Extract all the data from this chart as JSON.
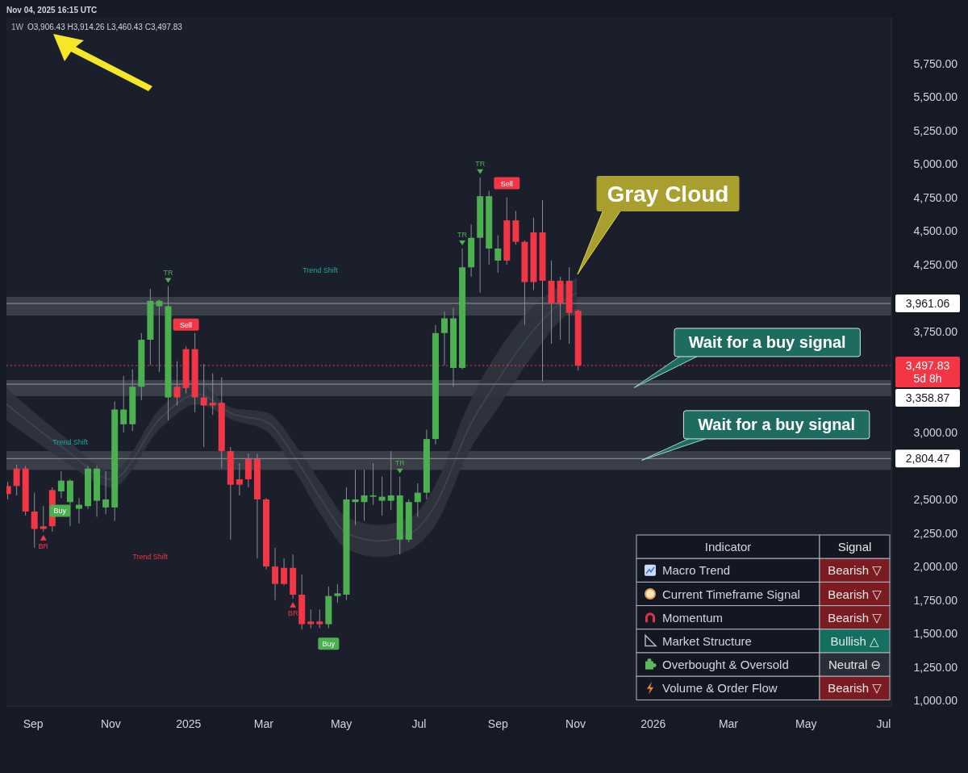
{
  "chart_data": [
    {
      "type": "candlestick",
      "title": "1W",
      "x": [
        "2024-08-12",
        "2024-08-19",
        "2024-08-26",
        "2024-09-02",
        "2024-09-09",
        "2024-09-16",
        "2024-09-23",
        "2024-09-30",
        "2024-10-07",
        "2024-10-14",
        "2024-10-21",
        "2024-10-28",
        "2024-11-04",
        "2024-11-11",
        "2024-11-18",
        "2024-11-25",
        "2024-12-02",
        "2024-12-09",
        "2024-12-16",
        "2024-12-23",
        "2024-12-30",
        "2025-01-06",
        "2025-01-13",
        "2025-01-20",
        "2025-01-27",
        "2025-02-03",
        "2025-02-10",
        "2025-02-17",
        "2025-02-24",
        "2025-03-03",
        "2025-03-10",
        "2025-03-17",
        "2025-03-24",
        "2025-03-31",
        "2025-04-07",
        "2025-04-14",
        "2025-04-21",
        "2025-04-28",
        "2025-05-05",
        "2025-05-12",
        "2025-05-19",
        "2025-05-26",
        "2025-06-02",
        "2025-06-09",
        "2025-06-16",
        "2025-06-23",
        "2025-06-30",
        "2025-07-07",
        "2025-07-14",
        "2025-07-21",
        "2025-07-28",
        "2025-08-04",
        "2025-08-11",
        "2025-08-18",
        "2025-08-25",
        "2025-09-01",
        "2025-09-08",
        "2025-09-15",
        "2025-09-22",
        "2025-09-29",
        "2025-10-06",
        "2025-10-13",
        "2025-10-20",
        "2025-10-27",
        "2025-11-03"
      ],
      "ohlc": [
        [
          2600,
          2630,
          2500,
          2540
        ],
        [
          2730,
          2760,
          2530,
          2600
        ],
        [
          2730,
          2750,
          2380,
          2410
        ],
        [
          2410,
          2550,
          2140,
          2280
        ],
        [
          2300,
          2450,
          2260,
          2280
        ],
        [
          2570,
          2590,
          2260,
          2300
        ],
        [
          2560,
          2710,
          2510,
          2640
        ],
        [
          2480,
          2650,
          2300,
          2640
        ],
        [
          2430,
          2510,
          2320,
          2460
        ],
        [
          2450,
          2750,
          2430,
          2730
        ],
        [
          2490,
          2750,
          2370,
          2730
        ],
        [
          2440,
          2710,
          2390,
          2500
        ],
        [
          2440,
          3230,
          2340,
          3170
        ],
        [
          3060,
          3420,
          3000,
          3170
        ],
        [
          3060,
          3470,
          3010,
          3340
        ],
        [
          3340,
          3740,
          3240,
          3690
        ],
        [
          3690,
          4070,
          3500,
          3980
        ],
        [
          3940,
          3990,
          3450,
          3980
        ],
        [
          3260,
          4090,
          3090,
          3940
        ],
        [
          3340,
          3530,
          3200,
          3260
        ],
        [
          3620,
          3640,
          3290,
          3330
        ],
        [
          3620,
          3740,
          3150,
          3260
        ],
        [
          3260,
          3510,
          2890,
          3200
        ],
        [
          3220,
          3440,
          3130,
          3200
        ],
        [
          3220,
          3410,
          2730,
          2860
        ],
        [
          2860,
          2890,
          2200,
          2610
        ],
        [
          2650,
          2770,
          2530,
          2610
        ],
        [
          2800,
          2840,
          2590,
          2650
        ],
        [
          2800,
          2840,
          2060,
          2500
        ],
        [
          2500,
          2510,
          1980,
          2000
        ],
        [
          2000,
          2140,
          1750,
          1870
        ],
        [
          1990,
          2060,
          1860,
          1870
        ],
        [
          1990,
          2090,
          1760,
          1790
        ],
        [
          1790,
          1940,
          1530,
          1570
        ],
        [
          1590,
          1680,
          1540,
          1570
        ],
        [
          1590,
          1680,
          1540,
          1570
        ],
        [
          1570,
          1850,
          1540,
          1780
        ],
        [
          1780,
          1870,
          1730,
          1800
        ],
        [
          1790,
          2590,
          1750,
          2500
        ],
        [
          2480,
          2720,
          2310,
          2500
        ],
        [
          2480,
          2720,
          2340,
          2530
        ],
        [
          2520,
          2770,
          2460,
          2530
        ],
        [
          2490,
          2670,
          2380,
          2520
        ],
        [
          2490,
          2860,
          2420,
          2530
        ],
        [
          2200,
          2670,
          2090,
          2530
        ],
        [
          2200,
          2500,
          2180,
          2480
        ],
        [
          2480,
          2620,
          2370,
          2550
        ],
        [
          2550,
          3020,
          2500,
          2950
        ],
        [
          2950,
          3800,
          2910,
          3740
        ],
        [
          3740,
          3900,
          3500,
          3850
        ],
        [
          3480,
          3930,
          3340,
          3850
        ],
        [
          3480,
          4370,
          3470,
          4230
        ],
        [
          4230,
          4550,
          4160,
          4450
        ],
        [
          4450,
          4900,
          4040,
          4760
        ],
        [
          4370,
          4800,
          4250,
          4760
        ],
        [
          4280,
          4470,
          4190,
          4370
        ],
        [
          4580,
          4750,
          4250,
          4280
        ],
        [
          4580,
          4650,
          4400,
          4420
        ],
        [
          4420,
          4430,
          3800,
          4120
        ],
        [
          4490,
          4600,
          4060,
          4120
        ],
        [
          4490,
          4730,
          3380,
          4130
        ],
        [
          4130,
          4280,
          3660,
          3960
        ],
        [
          4130,
          4160,
          3690,
          3960
        ],
        [
          4130,
          4230,
          3660,
          3890
        ],
        [
          3906.43,
          3914.26,
          3460.43,
          3497.83
        ]
      ],
      "series": [
        {
          "type": "line",
          "color": "#3d4250",
          "upper": [
            3330,
            2970,
            2710,
            3180,
            3360,
            3180,
            3150,
            2880,
            2610,
            2370,
            2310,
            2370,
            2610,
            3210,
            3630,
            3930,
            4110,
            4150
          ],
          "x": [
            "2024-08-11",
            "2024-09-25",
            "2024-11-02",
            "2024-12-10",
            "2025-01-08",
            "2025-02-05",
            "2025-03-03",
            "2025-03-28",
            "2025-04-16",
            "2025-05-05",
            "2025-05-31",
            "2025-06-25",
            "2025-07-14",
            "2025-08-09",
            "2025-09-03",
            "2025-09-28",
            "2025-10-24",
            "2025-11-02"
          ],
          "values": [
            3210,
            2880,
            2650,
            3105,
            3285,
            3135,
            3080,
            2775,
            2490,
            2250,
            2190,
            2250,
            2460,
            3030,
            3420,
            3750,
            3990,
            4040
          ],
          "lower": [
            3090,
            2790,
            2590,
            3030,
            3210,
            3090,
            3010,
            2670,
            2370,
            2130,
            2070,
            2130,
            2310,
            2850,
            3210,
            3570,
            3870,
            3930
          ]
        }
      ],
      "xlim": [
        "2024-08-11",
        "2026-07-07"
      ],
      "xticks": [
        {
          "value": "2024-09-01",
          "label": "Sep"
        },
        {
          "value": "2024-11-01",
          "label": "Nov"
        },
        {
          "value": "2025-01-01",
          "label": "2025"
        },
        {
          "value": "2025-03-01",
          "label": "Mar"
        },
        {
          "value": "2025-05-01",
          "label": "May"
        },
        {
          "value": "2025-07-01",
          "label": "Jul"
        },
        {
          "value": "2025-09-01",
          "label": "Sep"
        },
        {
          "value": "2025-11-01",
          "label": "Nov"
        },
        {
          "value": "2026-01-01",
          "label": "2026"
        },
        {
          "value": "2026-03-01",
          "label": "Mar"
        },
        {
          "value": "2026-05-01",
          "label": "May"
        },
        {
          "value": "2026-07-01",
          "label": "Jul"
        }
      ],
      "ylim": [
        960,
        6090
      ],
      "yticks": [
        {
          "value": 1000,
          "label": "1,000.00"
        },
        {
          "value": 1250,
          "label": "1,250.00"
        },
        {
          "value": 1500,
          "label": "1,500.00"
        },
        {
          "value": 1750,
          "label": "1,750.00"
        },
        {
          "value": 2000,
          "label": "2,000.00"
        },
        {
          "value": 2250,
          "label": "2,250.00"
        },
        {
          "value": 2500,
          "label": "2,500.00"
        },
        {
          "value": 3000,
          "label": "3,000.00"
        },
        {
          "value": 3750,
          "label": "3,750.00"
        },
        {
          "value": 4250,
          "label": "4,250.00"
        },
        {
          "value": 4500,
          "label": "4,500.00"
        },
        {
          "value": 4750,
          "label": "4,750.00"
        },
        {
          "value": 5000,
          "label": "5,000.00"
        },
        {
          "value": 5250,
          "label": "5,250.00"
        },
        {
          "value": 5500,
          "label": "5,500.00"
        },
        {
          "value": 5750,
          "label": "5,750.00"
        }
      ],
      "bands": [
        {
          "axis": "y",
          "from": 3870,
          "to": 4010,
          "color": "#50535e"
        },
        {
          "axis": "y",
          "from": 3270,
          "to": 3390,
          "color": "#50535e"
        },
        {
          "axis": "y",
          "from": 2720,
          "to": 2860,
          "color": "#50535e"
        }
      ],
      "ref_lines": [
        {
          "axis": "y",
          "value": 3961.06,
          "label": "3,961.06"
        },
        {
          "axis": "y",
          "value": 3497.83,
          "label": "3,497.83",
          "color": "#f23645",
          "line_style": "dotted"
        },
        {
          "axis": "y",
          "value": 3358.87,
          "label": "3,358.87"
        },
        {
          "axis": "y",
          "value": 2804.47,
          "label": "2,804.47"
        }
      ],
      "annotations": [
        "Nov 04, 2025 16:15 UTC",
        "O3,906.43 H3,914.26 L3,460.43 C3,497.83",
        "5d 8h",
        "Trend Shift",
        "Trend Shift",
        "Trend Shift",
        "Gray Cloud",
        {
          "text": "TR",
          "x": "2024-12-16",
          "y": 4090
        },
        {
          "text": "Sell",
          "x": "2024-12-30",
          "y": 3800
        },
        {
          "text": "Buy",
          "x": "2024-09-22",
          "y": 2413
        },
        {
          "text": "BR",
          "x": "2024-09-09",
          "y": 2260
        },
        {
          "text": "BR",
          "x": "2025-03-24",
          "y": 1760
        },
        {
          "text": "Buy",
          "x": "2025-04-21",
          "y": 1421
        },
        {
          "text": "TR",
          "x": "2025-06-16",
          "y": 2670
        },
        {
          "text": "TR",
          "x": "2025-08-04",
          "y": 4370
        },
        {
          "text": "TR",
          "x": "2025-08-18",
          "y": 4900
        },
        {
          "text": "Sell",
          "x": "2025-09-08",
          "y": 4854
        },
        {
          "text": "Wait for a buy signal",
          "x": "2025-12-17",
          "y": 3333
        },
        {
          "text": "Wait for a buy signal",
          "x": "2025-12-23",
          "y": 2792
        }
      ]
    },
    {
      "type": "other",
      "annotations": [
        "Indicator",
        "Signal",
        "Macro Trend",
        "Bearish ▽",
        "Current Timeframe Signal",
        "Bearish ▽",
        "Momentum",
        "Bearish ▽",
        "Market Structure",
        "Bullish △",
        "Overbought & Oversold",
        "Neutral ⊖",
        "Volume & Order Flow",
        "Bearish ▽"
      ],
      "colors": [
        "#7a1c22",
        "#7a1c22",
        "#7a1c22",
        "#137060",
        "#2a2e39",
        "#7a1c22"
      ]
    }
  ]
}
